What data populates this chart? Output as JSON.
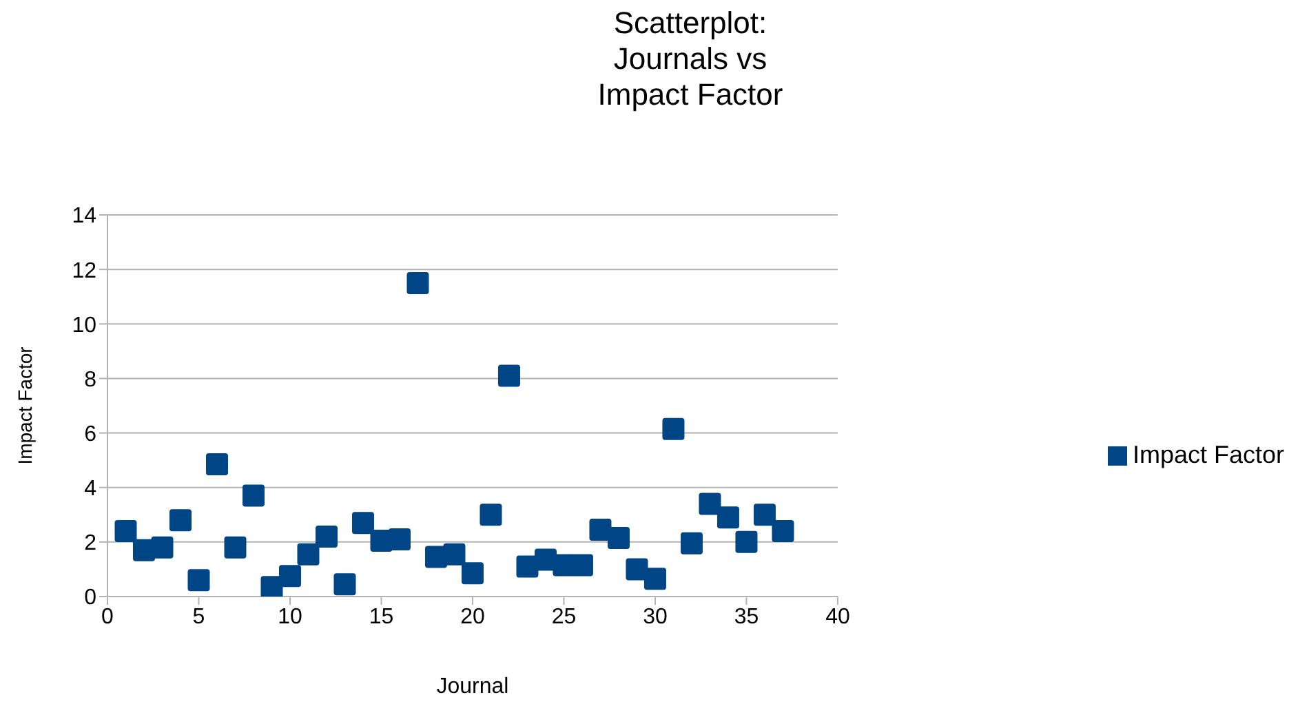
{
  "chart_data": {
    "type": "scatter",
    "title": "Scatterplot:\nJournals vs\nImpact Factor",
    "xlabel": "Journal",
    "ylabel": "Impact Factor",
    "x": [
      1,
      2,
      3,
      4,
      5,
      6,
      7,
      8,
      9,
      10,
      11,
      12,
      13,
      14,
      15,
      16,
      17,
      18,
      19,
      20,
      21,
      22,
      23,
      24,
      25,
      26,
      27,
      28,
      29,
      30,
      31,
      32,
      33,
      34,
      35,
      36,
      37
    ],
    "series": [
      {
        "name": "Impact Factor",
        "color": "#004586",
        "values": [
          2.4,
          1.7,
          1.8,
          2.8,
          0.6,
          4.85,
          1.8,
          3.7,
          0.35,
          0.75,
          1.55,
          2.2,
          0.45,
          2.7,
          2.05,
          2.1,
          11.5,
          1.45,
          1.55,
          0.85,
          3.0,
          8.1,
          1.1,
          1.35,
          1.15,
          1.15,
          2.45,
          2.15,
          1.0,
          0.65,
          6.15,
          1.95,
          3.4,
          2.9,
          2.0,
          3.0,
          2.4
        ]
      }
    ],
    "xlim": [
      0,
      40
    ],
    "xticks": [
      0,
      5,
      10,
      15,
      20,
      25,
      30,
      35,
      40
    ],
    "ylim": [
      0,
      14
    ],
    "yticks": [
      0,
      2,
      4,
      6,
      8,
      10,
      12,
      14
    ],
    "grid": "y",
    "legend": "right",
    "marker": "square"
  }
}
